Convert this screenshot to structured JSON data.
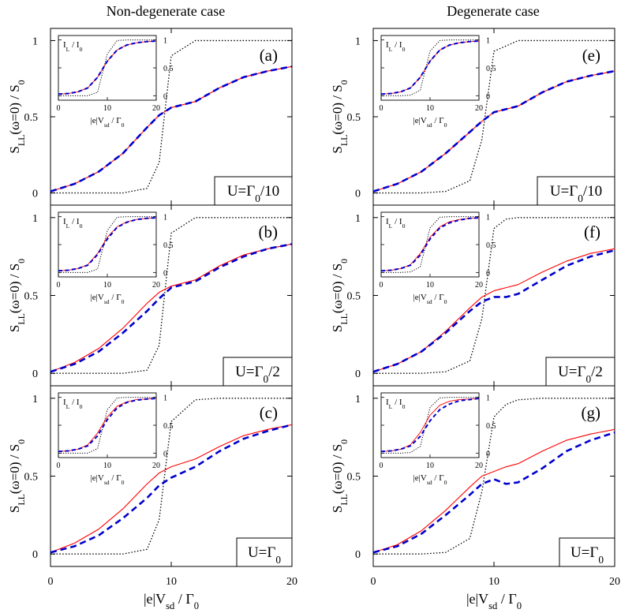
{
  "figure": {
    "column_titles": [
      "Non-degenerate case",
      "Degenerate case"
    ],
    "xlabel": {
      "base": "|e|V",
      "sub": "sd",
      "rest": " / Γ",
      "sub2": "0"
    },
    "ylabel": {
      "base": "S",
      "sub": "LL",
      "mid": "(ω=0) / S",
      "sub2": "0"
    },
    "inset_ylabel": {
      "a": "I",
      "asub": "L",
      "b": " / I",
      "bsub": "0"
    },
    "inset_xlabel": {
      "base": "|e|V",
      "sub": "sd",
      "rest": " / Γ",
      "sub2": "0"
    },
    "colors": {
      "red": "#ff0000",
      "blue": "#0000cc",
      "black": "#000000"
    }
  },
  "chart_data": [
    {
      "id": "a",
      "letter": "(a)",
      "U_label": {
        "pre": "U=Γ",
        "sub": "0",
        "post": "/10"
      },
      "type": "line",
      "xlim": [
        0,
        20
      ],
      "ylim": [
        -0.08,
        1.08
      ],
      "xticks": [
        0,
        10,
        20
      ],
      "yticks": [
        0,
        0.5,
        1
      ],
      "x": [
        0,
        2,
        4,
        6,
        8,
        9,
        10,
        12,
        14,
        16,
        18,
        20
      ],
      "series": [
        {
          "name": "red",
          "values": [
            0.01,
            0.06,
            0.14,
            0.26,
            0.43,
            0.51,
            0.56,
            0.6,
            0.69,
            0.76,
            0.8,
            0.83
          ]
        },
        {
          "name": "blue",
          "values": [
            0.01,
            0.06,
            0.14,
            0.26,
            0.43,
            0.51,
            0.56,
            0.6,
            0.69,
            0.76,
            0.8,
            0.83
          ]
        },
        {
          "name": "black",
          "values": [
            0,
            0,
            0,
            0,
            0.03,
            0.2,
            0.9,
            1,
            1,
            1,
            1,
            1
          ]
        }
      ],
      "inset": {
        "xlim": [
          0,
          20
        ],
        "ylim": [
          -0.08,
          1.08
        ],
        "xticks": [
          0,
          10,
          20
        ],
        "yticks": [
          0,
          0.5,
          1
        ],
        "x": [
          0,
          2,
          4,
          6,
          8,
          10,
          12,
          14,
          16,
          18,
          20
        ],
        "red": [
          0.03,
          0.04,
          0.07,
          0.14,
          0.33,
          0.62,
          0.82,
          0.91,
          0.95,
          0.97,
          0.98
        ],
        "blue": [
          0.03,
          0.04,
          0.07,
          0.14,
          0.33,
          0.62,
          0.82,
          0.91,
          0.95,
          0.97,
          0.98
        ],
        "black": [
          0,
          0,
          0,
          0,
          0.06,
          0.75,
          0.99,
          1,
          1,
          1,
          1
        ]
      }
    },
    {
      "id": "e",
      "letter": "(e)",
      "U_label": {
        "pre": "U=Γ",
        "sub": "0",
        "post": "/10"
      },
      "type": "line",
      "xlim": [
        0,
        20
      ],
      "ylim": [
        -0.08,
        1.08
      ],
      "xticks": [
        0,
        10,
        20
      ],
      "yticks": [
        0,
        0.5,
        1
      ],
      "x": [
        0,
        2,
        4,
        6,
        8,
        9,
        10,
        12,
        14,
        16,
        18,
        20
      ],
      "series": [
        {
          "name": "red",
          "values": [
            0.01,
            0.06,
            0.14,
            0.26,
            0.4,
            0.47,
            0.53,
            0.57,
            0.66,
            0.73,
            0.77,
            0.8
          ]
        },
        {
          "name": "blue",
          "values": [
            0.01,
            0.06,
            0.14,
            0.26,
            0.4,
            0.47,
            0.53,
            0.57,
            0.66,
            0.73,
            0.77,
            0.8
          ]
        },
        {
          "name": "black",
          "values": [
            0,
            0,
            0,
            0.01,
            0.08,
            0.35,
            0.93,
            1,
            1,
            1,
            1,
            1
          ]
        }
      ],
      "inset": {
        "xlim": [
          0,
          20
        ],
        "ylim": [
          -0.08,
          1.08
        ],
        "xticks": [
          0,
          10,
          20
        ],
        "yticks": [
          0,
          0.5,
          1
        ],
        "x": [
          0,
          2,
          4,
          6,
          8,
          10,
          12,
          14,
          16,
          18,
          20
        ],
        "red": [
          0.03,
          0.04,
          0.07,
          0.14,
          0.33,
          0.62,
          0.82,
          0.91,
          0.95,
          0.97,
          0.98
        ],
        "blue": [
          0.03,
          0.04,
          0.07,
          0.14,
          0.33,
          0.62,
          0.82,
          0.91,
          0.95,
          0.97,
          0.98
        ],
        "black": [
          0,
          0,
          0,
          0.01,
          0.1,
          0.8,
          0.99,
          1,
          1,
          1,
          1
        ]
      }
    },
    {
      "id": "b",
      "letter": "(b)",
      "U_label": {
        "pre": "U=Γ",
        "sub": "0",
        "post": "/2"
      },
      "type": "line",
      "xlim": [
        0,
        20
      ],
      "ylim": [
        -0.08,
        1.08
      ],
      "xticks": [
        0,
        10,
        20
      ],
      "yticks": [
        0,
        0.5,
        1
      ],
      "x": [
        0,
        2,
        4,
        6,
        8,
        9,
        10,
        12,
        14,
        16,
        18,
        20
      ],
      "series": [
        {
          "name": "red",
          "values": [
            0.01,
            0.07,
            0.16,
            0.29,
            0.45,
            0.52,
            0.56,
            0.6,
            0.69,
            0.76,
            0.8,
            0.83
          ]
        },
        {
          "name": "blue",
          "values": [
            0.01,
            0.06,
            0.14,
            0.26,
            0.4,
            0.48,
            0.55,
            0.59,
            0.68,
            0.75,
            0.8,
            0.83
          ]
        },
        {
          "name": "black",
          "values": [
            0,
            0,
            0,
            0,
            0.02,
            0.18,
            0.9,
            1,
            1,
            1,
            1,
            1
          ]
        }
      ],
      "inset": {
        "xlim": [
          0,
          20
        ],
        "ylim": [
          -0.08,
          1.08
        ],
        "xticks": [
          0,
          10,
          20
        ],
        "yticks": [
          0,
          0.5,
          1
        ],
        "x": [
          0,
          2,
          4,
          6,
          8,
          10,
          12,
          14,
          16,
          18,
          20
        ],
        "red": [
          0.03,
          0.04,
          0.07,
          0.14,
          0.34,
          0.63,
          0.82,
          0.91,
          0.95,
          0.97,
          0.98
        ],
        "blue": [
          0.03,
          0.04,
          0.07,
          0.13,
          0.32,
          0.6,
          0.81,
          0.9,
          0.95,
          0.97,
          0.98
        ],
        "black": [
          0,
          0,
          0,
          0,
          0.06,
          0.75,
          0.99,
          1,
          1,
          1,
          1
        ]
      }
    },
    {
      "id": "f",
      "letter": "(f)",
      "U_label": {
        "pre": "U=Γ",
        "sub": "0",
        "post": "/2"
      },
      "type": "line",
      "xlim": [
        0,
        20
      ],
      "ylim": [
        -0.08,
        1.08
      ],
      "xticks": [
        0,
        10,
        20
      ],
      "yticks": [
        0,
        0.5,
        1
      ],
      "x": [
        0,
        2,
        4,
        6,
        8,
        9,
        10,
        11,
        12,
        14,
        16,
        18,
        20
      ],
      "series": [
        {
          "name": "red",
          "values": [
            0.01,
            0.06,
            0.14,
            0.27,
            0.42,
            0.49,
            0.53,
            0.55,
            0.57,
            0.65,
            0.72,
            0.77,
            0.8
          ]
        },
        {
          "name": "blue",
          "values": [
            0.01,
            0.06,
            0.14,
            0.26,
            0.4,
            0.46,
            0.49,
            0.49,
            0.51,
            0.6,
            0.69,
            0.75,
            0.79
          ]
        },
        {
          "name": "black",
          "values": [
            0,
            0,
            0,
            0.01,
            0.08,
            0.35,
            0.93,
            0.99,
            1,
            1,
            1,
            1,
            1
          ]
        }
      ],
      "inset": {
        "xlim": [
          0,
          20
        ],
        "ylim": [
          -0.08,
          1.08
        ],
        "xticks": [
          0,
          10,
          20
        ],
        "yticks": [
          0,
          0.5,
          1
        ],
        "x": [
          0,
          2,
          4,
          6,
          8,
          10,
          12,
          14,
          16,
          18,
          20
        ],
        "red": [
          0.03,
          0.04,
          0.07,
          0.14,
          0.34,
          0.63,
          0.82,
          0.91,
          0.95,
          0.97,
          0.98
        ],
        "blue": [
          0.03,
          0.04,
          0.07,
          0.13,
          0.31,
          0.6,
          0.8,
          0.89,
          0.94,
          0.97,
          0.98
        ],
        "black": [
          0,
          0,
          0,
          0.01,
          0.1,
          0.8,
          0.99,
          1,
          1,
          1,
          1
        ]
      }
    },
    {
      "id": "c",
      "letter": "(c)",
      "U_label": {
        "pre": "U=Γ",
        "sub": "0",
        "post": ""
      },
      "type": "line",
      "xlim": [
        0,
        20
      ],
      "ylim": [
        -0.08,
        1.08
      ],
      "xticks": [
        0,
        10,
        20
      ],
      "yticks": [
        0,
        0.5,
        1
      ],
      "x": [
        0,
        2,
        4,
        6,
        8,
        9,
        10,
        12,
        14,
        16,
        18,
        20
      ],
      "series": [
        {
          "name": "red",
          "values": [
            0.01,
            0.07,
            0.16,
            0.29,
            0.45,
            0.52,
            0.56,
            0.61,
            0.69,
            0.76,
            0.8,
            0.83
          ]
        },
        {
          "name": "blue",
          "values": [
            0.01,
            0.05,
            0.12,
            0.23,
            0.36,
            0.44,
            0.49,
            0.56,
            0.66,
            0.74,
            0.79,
            0.83
          ]
        },
        {
          "name": "black",
          "values": [
            0,
            0,
            0,
            0,
            0.03,
            0.22,
            0.85,
            0.99,
            1,
            1,
            1,
            1
          ]
        }
      ],
      "inset": {
        "xlim": [
          0,
          20
        ],
        "ylim": [
          -0.08,
          1.08
        ],
        "xticks": [
          0,
          10,
          20
        ],
        "yticks": [
          0,
          0.5,
          1
        ],
        "x": [
          0,
          2,
          4,
          6,
          8,
          10,
          12,
          14,
          16,
          18,
          20
        ],
        "red": [
          0.03,
          0.04,
          0.07,
          0.15,
          0.36,
          0.65,
          0.84,
          0.92,
          0.96,
          0.97,
          0.98
        ],
        "blue": [
          0.03,
          0.04,
          0.07,
          0.13,
          0.31,
          0.6,
          0.81,
          0.91,
          0.95,
          0.97,
          0.98
        ],
        "black": [
          0,
          0,
          0,
          0,
          0.08,
          0.78,
          0.99,
          1,
          1,
          1,
          1
        ]
      }
    },
    {
      "id": "g",
      "letter": "(g)",
      "U_label": {
        "pre": "U=Γ",
        "sub": "0",
        "post": ""
      },
      "type": "line",
      "xlim": [
        0,
        20
      ],
      "ylim": [
        -0.08,
        1.08
      ],
      "xticks": [
        0,
        10,
        20
      ],
      "yticks": [
        0,
        0.5,
        1
      ],
      "x": [
        0,
        2,
        4,
        6,
        8,
        9,
        10,
        11,
        12,
        14,
        16,
        18,
        20
      ],
      "series": [
        {
          "name": "red",
          "values": [
            0.01,
            0.06,
            0.15,
            0.28,
            0.43,
            0.5,
            0.53,
            0.56,
            0.58,
            0.66,
            0.73,
            0.77,
            0.8
          ]
        },
        {
          "name": "blue",
          "values": [
            0.01,
            0.05,
            0.13,
            0.25,
            0.38,
            0.45,
            0.48,
            0.45,
            0.46,
            0.55,
            0.66,
            0.73,
            0.78
          ]
        },
        {
          "name": "black",
          "values": [
            0,
            0,
            0,
            0.01,
            0.1,
            0.4,
            0.88,
            0.96,
            0.99,
            1,
            1,
            1,
            1
          ]
        }
      ],
      "inset": {
        "xlim": [
          0,
          20
        ],
        "ylim": [
          -0.08,
          1.08
        ],
        "xticks": [
          0,
          10,
          20
        ],
        "yticks": [
          0,
          0.5,
          1
        ],
        "x": [
          0,
          2,
          4,
          6,
          8,
          10,
          12,
          14,
          16,
          18,
          20
        ],
        "red": [
          0.03,
          0.04,
          0.07,
          0.15,
          0.37,
          0.68,
          0.86,
          0.93,
          0.96,
          0.97,
          0.98
        ],
        "blue": [
          0.03,
          0.04,
          0.07,
          0.13,
          0.3,
          0.58,
          0.78,
          0.88,
          0.94,
          0.96,
          0.98
        ],
        "black": [
          0,
          0,
          0,
          0.01,
          0.12,
          0.82,
          0.99,
          1,
          1,
          1,
          1
        ]
      }
    }
  ]
}
